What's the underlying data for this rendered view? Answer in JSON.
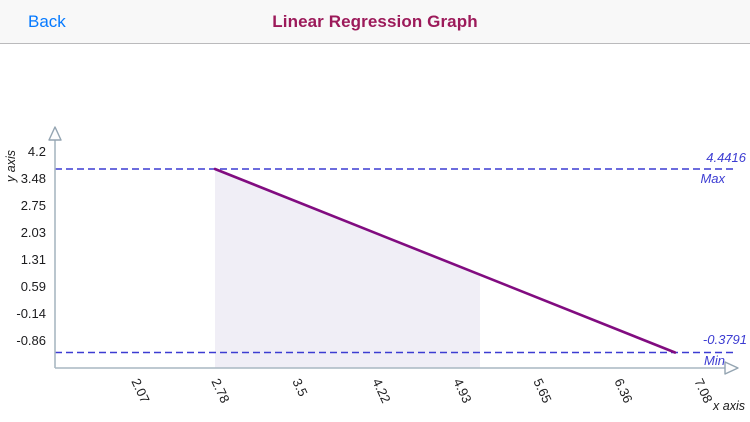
{
  "navbar": {
    "back_label": "Back",
    "title": "Linear Regression Graph"
  },
  "chart_data": {
    "type": "line",
    "xlabel": "x axis",
    "ylabel": "y axis",
    "x_tick_labels": [
      "2.07",
      "2.78",
      "3.5",
      "4.22",
      "4.93",
      "5.65",
      "6.36",
      "7.08"
    ],
    "y_tick_labels": [
      "4.2",
      "3.48",
      "2.75",
      "2.03",
      "1.31",
      "0.59",
      "-0.14",
      "-0.86"
    ],
    "x_range": [
      2.07,
      7.08
    ],
    "y_range": [
      -0.86,
      4.2
    ],
    "max_line": {
      "value": 4.4416,
      "value_label": "4.4416",
      "name": "Max",
      "style": "dashed"
    },
    "min_line": {
      "value": -0.3791,
      "value_label": "-0.3791",
      "name": "Min",
      "style": "dashed"
    },
    "regression_line": {
      "start_y": 4.4416,
      "end_y": -0.3791,
      "direction": "decreasing"
    },
    "shaded_region": {
      "x_start_label": "2.78",
      "x_end_label": "4.93"
    },
    "grid": "off",
    "legend": "none",
    "colors": {
      "accent_blue": "#067aff",
      "title": "#9c1a5a",
      "regression_line": "#810c80",
      "dashed_line": "#3c3cd2",
      "limit_text": "#2f2fd6",
      "shaded_region": "#f0eef6",
      "axis": "#a9b7c2"
    }
  }
}
